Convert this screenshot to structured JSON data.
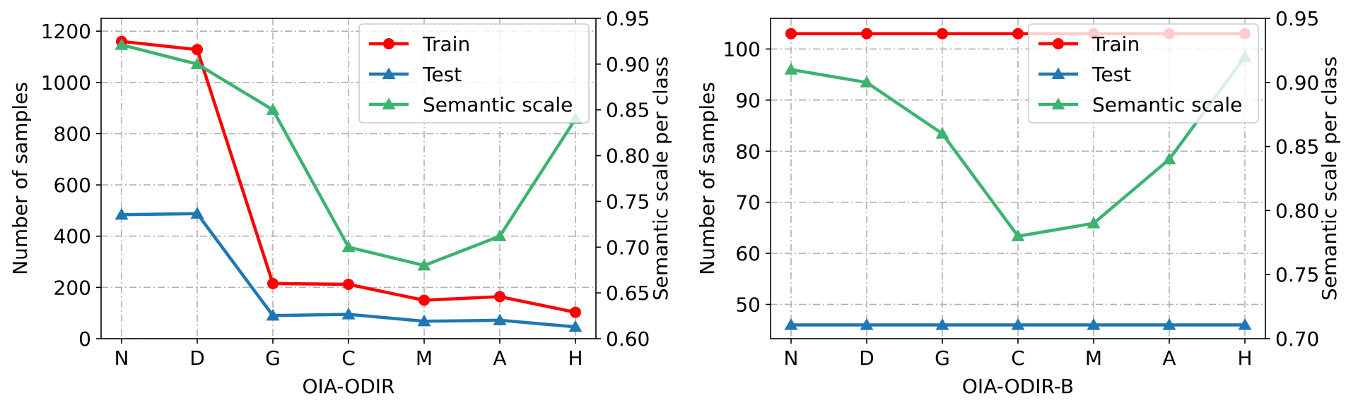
{
  "chart_data": [
    {
      "type": "line",
      "xlabel": "OIA-ODIR",
      "ylabel": "Number of samples",
      "y2label": "Semantic scale per class",
      "categories": [
        "N",
        "D",
        "G",
        "C",
        "M",
        "A",
        "H"
      ],
      "ylim": [
        0,
        1250
      ],
      "yticks": [
        0,
        200,
        400,
        600,
        800,
        1000,
        1200
      ],
      "y2lim": [
        0.6,
        0.95
      ],
      "y2ticks": [
        "0.60",
        "0.65",
        "0.70",
        "0.75",
        "0.80",
        "0.85",
        "0.90",
        "0.95"
      ],
      "grid": true,
      "legend_position": "top-right",
      "series": [
        {
          "name": "Train",
          "axis": "left",
          "marker": "circle",
          "color": "#ff0000",
          "values": [
            1160,
            1128,
            215,
            212,
            150,
            164,
            103
          ]
        },
        {
          "name": "Test",
          "axis": "left",
          "marker": "triangle",
          "color": "#1f77b4",
          "values": [
            484,
            488,
            90,
            95,
            68,
            72,
            46
          ]
        },
        {
          "name": "Semantic scale",
          "axis": "right",
          "marker": "triangle",
          "color": "#3cb371",
          "values": [
            0.921,
            0.9,
            0.85,
            0.7,
            0.68,
            0.712,
            0.84
          ]
        }
      ]
    },
    {
      "type": "line",
      "xlabel": "OIA-ODIR-B",
      "ylabel": "Number of samples",
      "y2label": "Semantic scale per class",
      "categories": [
        "N",
        "D",
        "G",
        "C",
        "M",
        "A",
        "H"
      ],
      "ylim": [
        43.3,
        106
      ],
      "yticks": [
        50,
        60,
        70,
        80,
        90,
        100
      ],
      "y2lim": [
        0.7,
        0.95
      ],
      "y2ticks": [
        "0.70",
        "0.75",
        "0.80",
        "0.85",
        "0.90",
        "0.95"
      ],
      "grid": true,
      "legend_position": "top-right",
      "series": [
        {
          "name": "Train",
          "axis": "left",
          "marker": "circle",
          "color": "#ff0000",
          "values": [
            103,
            103,
            103,
            103,
            103,
            103,
            103
          ]
        },
        {
          "name": "Test",
          "axis": "left",
          "marker": "triangle",
          "color": "#1f77b4",
          "values": [
            46,
            46,
            46,
            46,
            46,
            46,
            46
          ]
        },
        {
          "name": "Semantic scale",
          "axis": "right",
          "marker": "triangle",
          "color": "#3cb371",
          "values": [
            0.91,
            0.9,
            0.86,
            0.78,
            0.79,
            0.84,
            0.92
          ]
        }
      ]
    }
  ]
}
